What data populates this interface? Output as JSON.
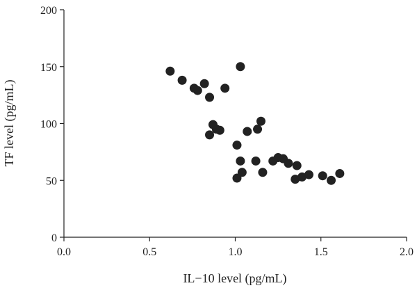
{
  "chart_data": {
    "type": "scatter",
    "title": "",
    "xlabel": "IL−10 level (pg/mL)",
    "ylabel": "TF level (pg/mL)",
    "xlim": [
      0,
      2.0
    ],
    "ylim": [
      0,
      200
    ],
    "xticks": [
      "0.0",
      "0.5",
      "1.0",
      "1.5",
      "2.0"
    ],
    "yticks": [
      "0",
      "50",
      "100",
      "150",
      "200"
    ],
    "grid": false,
    "marker_color": "#222222",
    "series": [
      {
        "points": [
          [
            0.62,
            146
          ],
          [
            0.69,
            138
          ],
          [
            0.76,
            131
          ],
          [
            0.78,
            129
          ],
          [
            0.82,
            135
          ],
          [
            0.85,
            123
          ],
          [
            0.94,
            131
          ],
          [
            1.03,
            150
          ],
          [
            0.87,
            99
          ],
          [
            0.89,
            95
          ],
          [
            0.91,
            94
          ],
          [
            0.85,
            90
          ],
          [
            1.07,
            93
          ],
          [
            1.13,
            95
          ],
          [
            1.15,
            102
          ],
          [
            1.01,
            81
          ],
          [
            1.03,
            67
          ],
          [
            1.12,
            67
          ],
          [
            1.04,
            57
          ],
          [
            1.01,
            52
          ],
          [
            1.16,
            57
          ],
          [
            1.22,
            67
          ],
          [
            1.25,
            70
          ],
          [
            1.28,
            69
          ],
          [
            1.31,
            65
          ],
          [
            1.36,
            63
          ],
          [
            1.35,
            51
          ],
          [
            1.39,
            53
          ],
          [
            1.43,
            55
          ],
          [
            1.51,
            54
          ],
          [
            1.56,
            50
          ],
          [
            1.61,
            56
          ]
        ]
      }
    ]
  }
}
